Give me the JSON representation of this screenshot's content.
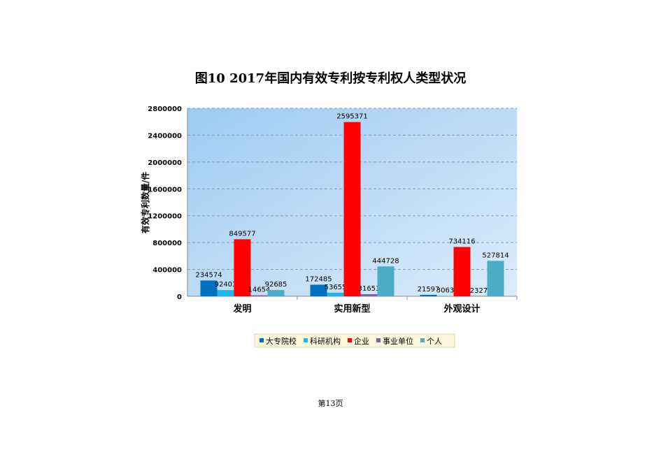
{
  "page": {
    "footer": "第13页"
  },
  "chart_data": {
    "type": "bar",
    "title": "图10   2017年国内有效专利按专利权人类型状况",
    "ylabel": "有效专利数量/件",
    "xlabel": "",
    "ylim": [
      0,
      2800000
    ],
    "yticks": [
      "0",
      "400000",
      "800000",
      "1200000",
      "1600000",
      "2000000",
      "2400000",
      "2800000"
    ],
    "grid": true,
    "legend": "bottom",
    "categories": [
      "发明",
      "实用新型",
      "外观设计"
    ],
    "series": [
      {
        "name": "大专院校",
        "color": "#0070c0",
        "values": [
          234574,
          172485,
          21597
        ]
      },
      {
        "name": "科研机构",
        "color": "#1fb6f0",
        "values": [
          92403,
          53655,
          3063
        ]
      },
      {
        "name": "企业",
        "color": "#ff0000",
        "values": [
          849577,
          2595371,
          734116
        ]
      },
      {
        "name": "事业单位",
        "color": "#7f62a6",
        "values": [
          14654,
          31653,
          2327
        ]
      },
      {
        "name": "个人",
        "color": "#4bacc6",
        "values": [
          92685,
          444728,
          527814
        ]
      }
    ]
  }
}
